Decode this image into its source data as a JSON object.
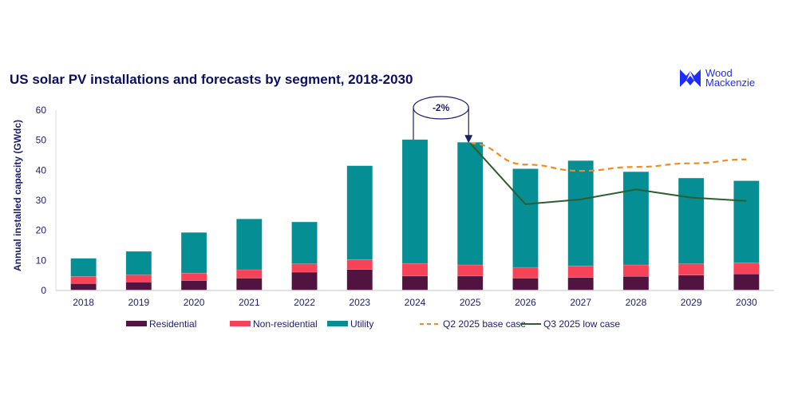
{
  "logo": {
    "line1": "Wood",
    "line2": "Mackenzie"
  },
  "colors": {
    "residential": "#51133f",
    "non_residential": "#f74358",
    "utility": "#058e93",
    "base_case": "#f58a22",
    "low_case": "#2e5e2e",
    "axis_text": "#1d1d6b",
    "annotation": "#1d1d6b"
  },
  "annotation": {
    "label": "-2%",
    "from": "2024",
    "to": "2025"
  },
  "chart_data": {
    "type": "bar",
    "title": "US solar PV installations and forecasts by segment, 2018-2030",
    "xlabel": "",
    "ylabel": "Annual installed capacity (GWdc)",
    "ylim": [
      0,
      60
    ],
    "yticks": [
      0,
      10,
      20,
      30,
      40,
      50,
      60
    ],
    "grid": false,
    "legend": "bottom",
    "stacked": true,
    "categories": [
      "2018",
      "2019",
      "2020",
      "2021",
      "2022",
      "2023",
      "2024",
      "2025",
      "2026",
      "2027",
      "2028",
      "2029",
      "2030"
    ],
    "series": [
      {
        "name": "Residential",
        "key": "residential",
        "values": [
          2.3,
          2.8,
          3.3,
          4.1,
          6.1,
          7.0,
          4.8,
          4.8,
          4.1,
          4.3,
          4.7,
          5.1,
          5.5
        ]
      },
      {
        "name": "Non-residential",
        "key": "non_residential",
        "values": [
          2.4,
          2.4,
          2.5,
          2.8,
          2.8,
          3.3,
          4.2,
          3.7,
          3.6,
          3.9,
          3.8,
          3.8,
          3.7
        ]
      },
      {
        "name": "Utility",
        "key": "utility",
        "values": [
          6.0,
          7.8,
          13.5,
          16.9,
          13.9,
          31.2,
          41.2,
          40.8,
          32.8,
          35.0,
          31.0,
          28.5,
          27.3
        ]
      }
    ],
    "lines": [
      {
        "name": "Q2 2025 base case",
        "key": "base_case",
        "style": "dashed",
        "x": [
          "2025",
          "2026",
          "2027",
          "2028",
          "2029",
          "2030"
        ],
        "values": [
          49.0,
          41.9,
          39.8,
          41.1,
          42.3,
          43.6
        ]
      },
      {
        "name": "Q3 2025 low case",
        "key": "low_case",
        "style": "solid",
        "x": [
          "2025",
          "2026",
          "2027",
          "2028",
          "2029",
          "2030"
        ],
        "values": [
          49.0,
          28.7,
          30.3,
          33.6,
          30.9,
          29.8
        ]
      }
    ]
  }
}
